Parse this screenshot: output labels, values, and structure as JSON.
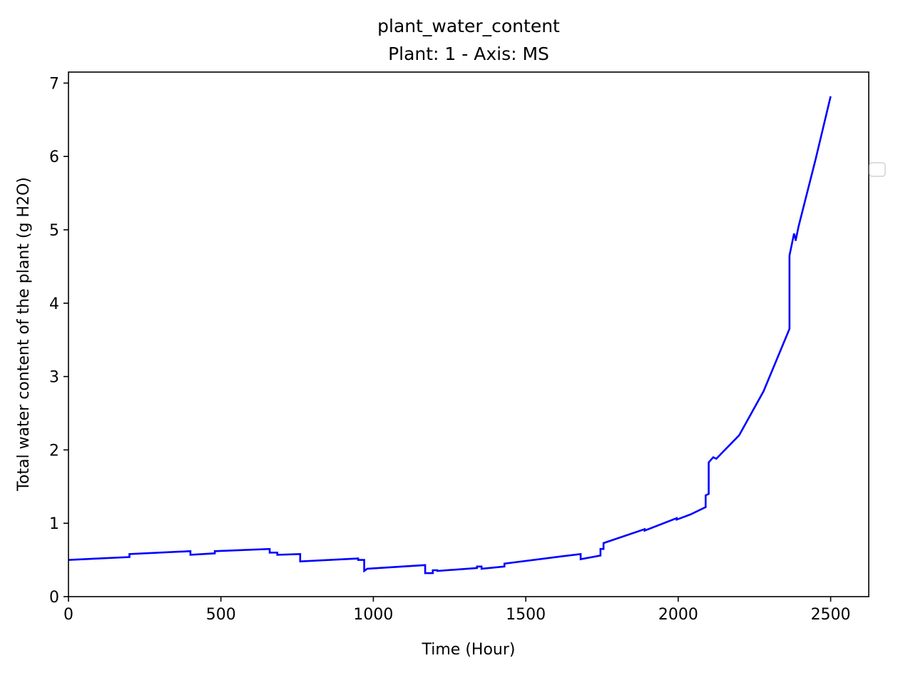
{
  "chart_data": {
    "type": "line",
    "title": "plant_water_content",
    "subtitle": "Plant: 1 - Axis: MS",
    "xlabel": "Time (Hour)",
    "ylabel": "Total water content of the plant (g H2O)",
    "xlim": [
      0,
      2625
    ],
    "ylim": [
      0,
      7.15
    ],
    "xticks": [
      0,
      500,
      1000,
      1500,
      2000,
      2500
    ],
    "xtick_labels": [
      "0",
      "500",
      "1000",
      "1500",
      "2000",
      "2500"
    ],
    "yticks": [
      0,
      1,
      2,
      3,
      4,
      5,
      6,
      7
    ],
    "ytick_labels": [
      "0",
      "1",
      "2",
      "3",
      "4",
      "5",
      "6",
      "7"
    ],
    "grid": false,
    "legend": {
      "location": "right",
      "entries": []
    },
    "line_color": "#0000ff",
    "series": [
      {
        "x": [
          0,
          200,
          200,
          400,
          400,
          480,
          480,
          660,
          660,
          685,
          685,
          760,
          760,
          950,
          950,
          970,
          970,
          980,
          980,
          1170,
          1170,
          1195,
          1195,
          1210,
          1210,
          1340,
          1340,
          1355,
          1355,
          1430,
          1430,
          1620,
          1620,
          1680,
          1680,
          1745,
          1745,
          1755,
          1755,
          1890,
          1890,
          1995,
          1995,
          2040,
          2090,
          2090,
          2100,
          2100,
          2115,
          2125,
          2200,
          2280,
          2365,
          2365,
          2370,
          2380,
          2385,
          2385,
          2395,
          2450,
          2500
        ],
        "y": [
          0.5,
          0.54,
          0.58,
          0.62,
          0.57,
          0.59,
          0.62,
          0.65,
          0.6,
          0.6,
          0.57,
          0.58,
          0.48,
          0.52,
          0.5,
          0.5,
          0.35,
          0.38,
          0.38,
          0.43,
          0.32,
          0.32,
          0.36,
          0.36,
          0.35,
          0.39,
          0.41,
          0.41,
          0.38,
          0.41,
          0.45,
          0.55,
          0.55,
          0.58,
          0.51,
          0.56,
          0.65,
          0.65,
          0.73,
          0.92,
          0.9,
          1.07,
          1.05,
          1.12,
          1.22,
          1.38,
          1.4,
          1.83,
          1.9,
          1.88,
          2.2,
          2.8,
          3.65,
          4.65,
          4.75,
          4.95,
          4.87,
          4.85,
          5.05,
          5.95,
          6.82
        ]
      }
    ]
  }
}
